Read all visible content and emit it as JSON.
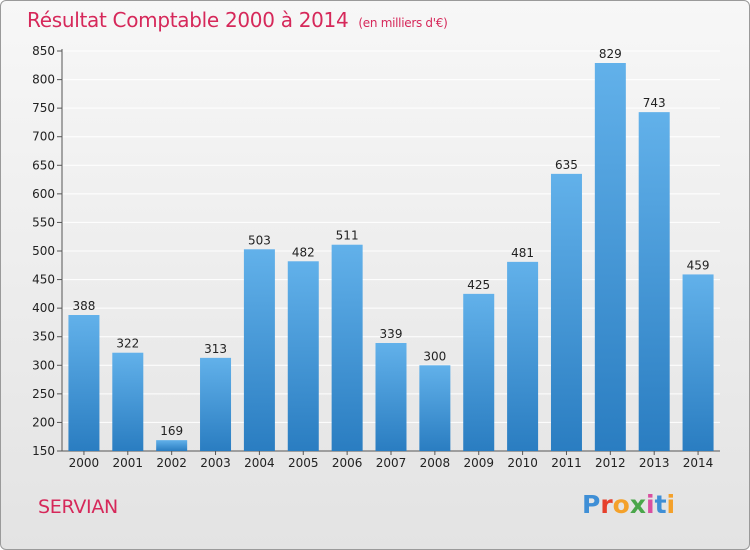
{
  "header": {
    "title": "Résultat Comptable 2000 à 2014",
    "subtitle": "(en milliers d'€)"
  },
  "location": "SERVIAN",
  "logo": {
    "text": "Proxiti",
    "letters": [
      "P",
      "r",
      "o",
      "x",
      "i",
      "t",
      "i"
    ]
  },
  "colors": {
    "title": "#d6285a",
    "bar_top": "#62b1ea",
    "bar_bottom": "#2a7dc1",
    "grid": "#ffffff",
    "axis_text": "#222222"
  },
  "chart_data": {
    "type": "bar",
    "title": "Résultat Comptable 2000 à 2014",
    "unit": "(en milliers d'€)",
    "categories": [
      "2000",
      "2001",
      "2002",
      "2003",
      "2004",
      "2005",
      "2006",
      "2007",
      "2008",
      "2009",
      "2010",
      "2011",
      "2012",
      "2013",
      "2014"
    ],
    "values": [
      388,
      322,
      169,
      313,
      503,
      482,
      511,
      339,
      300,
      425,
      481,
      635,
      829,
      743,
      459
    ],
    "data_labels": [
      "388",
      "322",
      "169",
      "313",
      "503",
      "482",
      "511",
      "339",
      "300",
      "425",
      "481",
      "635",
      "829",
      "743",
      "459"
    ],
    "y_ticks": [
      150,
      200,
      250,
      300,
      350,
      400,
      450,
      500,
      550,
      600,
      650,
      700,
      750,
      800,
      850
    ],
    "ylim": [
      150,
      850
    ],
    "xlabel": "",
    "ylabel": "",
    "grid": true,
    "legend": "none"
  }
}
